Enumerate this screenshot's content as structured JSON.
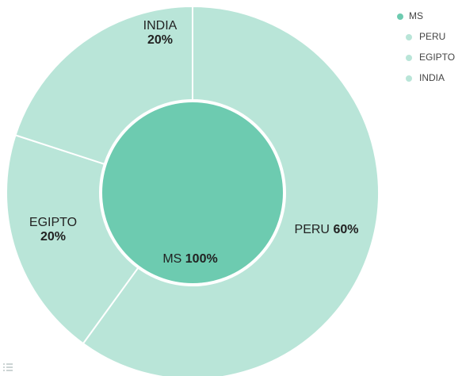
{
  "chart_data": {
    "type": "sunburst",
    "root": {
      "name": "MS",
      "value": 100,
      "value_label": "100%",
      "color": "#6dcbb0"
    },
    "categories": [
      "PERU",
      "EGIPTO",
      "INDIA"
    ],
    "values": [
      60,
      20,
      20
    ],
    "value_labels": [
      "60%",
      "20%",
      "20%"
    ],
    "color": "#b9e5d8",
    "legend": "top-right"
  }
}
